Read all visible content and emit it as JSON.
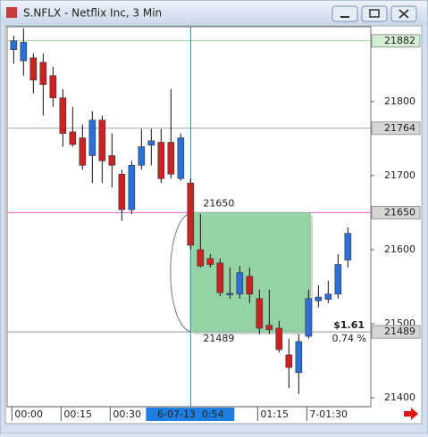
{
  "chart_data": {
    "type": "candlestick",
    "title": "S.NFLX - Netflix Inc, 3 Min",
    "x": [
      0,
      3,
      6,
      9,
      12,
      15,
      18,
      21,
      24,
      27,
      30,
      33,
      36,
      39,
      42,
      45,
      48,
      51,
      54,
      57,
      60,
      63,
      66,
      69,
      72,
      75,
      78,
      81,
      84,
      87,
      90,
      93,
      96,
      99,
      102
    ],
    "open": [
      21870,
      21855,
      21859,
      21853,
      21835,
      21805,
      21759,
      21751,
      21727,
      21775,
      21727,
      21702,
      21654,
      21714,
      21741,
      21745,
      21745,
      21696,
      21690,
      21600,
      21588,
      21582,
      21539,
      21540,
      21564,
      21534,
      21498,
      21494,
      21458,
      21434,
      21483,
      21531,
      21533,
      21540,
      21586
    ],
    "high": [
      21889,
      21899,
      21865,
      21865,
      21847,
      21817,
      21793,
      21769,
      21787,
      21781,
      21757,
      21708,
      21720,
      21763,
      21763,
      21763,
      21817,
      21757,
      21696,
      21648,
      21594,
      21588,
      21576,
      21578,
      21576,
      21546,
      21546,
      21504,
      21480,
      21486,
      21546,
      21552,
      21558,
      21594,
      21630
    ],
    "low": [
      21851,
      21835,
      21811,
      21781,
      21793,
      21739,
      21739,
      21708,
      21690,
      21690,
      21684,
      21639,
      21648,
      21708,
      21714,
      21690,
      21696,
      21693,
      21600,
      21576,
      21576,
      21537,
      21534,
      21534,
      21528,
      21486,
      21486,
      21461,
      21413,
      21405,
      21480,
      21522,
      21528,
      21534,
      21576
    ],
    "close": [
      21882,
      21880,
      21829,
      21823,
      21805,
      21757,
      21742,
      21714,
      21775,
      21720,
      21714,
      21654,
      21714,
      21739,
      21747,
      21696,
      21702,
      21751,
      21606,
      21578,
      21580,
      21542,
      21541,
      21569,
      21540,
      21494,
      21492,
      21465,
      21441,
      21476,
      21534,
      21536,
      21540,
      21580,
      21622
    ],
    "up_color": "#2d6fd8",
    "down_color": "#cc2222",
    "xlim": [
      -2,
      109
    ],
    "xticks": [
      {
        "value": 0,
        "label": "00:00"
      },
      {
        "value": 15,
        "label": "00:15"
      },
      {
        "value": 30,
        "label": "00:30"
      },
      {
        "value": 75,
        "label": "01:15"
      },
      {
        "value": 90,
        "label": "7-01:30"
      }
    ],
    "ylim": [
      21388,
      21901
    ],
    "yticks": [
      21400,
      21500,
      21600,
      21700,
      21800
    ],
    "cursor": {
      "value": 54,
      "label": "6-07-13  0:54",
      "color": "#1a8fb0"
    },
    "price_lines": [
      {
        "value": 21882,
        "color": "#9fd49f",
        "label_bg": "#d3eed3"
      },
      {
        "value": 21764,
        "color": "#a8a8a8",
        "label_bg": "#d6d6d6"
      },
      {
        "value": 21650,
        "color": "#e060c8",
        "label_bg": "#d6d6d6"
      },
      {
        "value": 21489,
        "color": "#909090",
        "label_bg": "#d6d6d6"
      }
    ],
    "measure": {
      "x_start": 54,
      "x_end": 90.5,
      "high": 21650,
      "low": 21489,
      "change_label": "$1.61",
      "percent_label": "0.74 %",
      "color": "#8fd3a3"
    }
  }
}
